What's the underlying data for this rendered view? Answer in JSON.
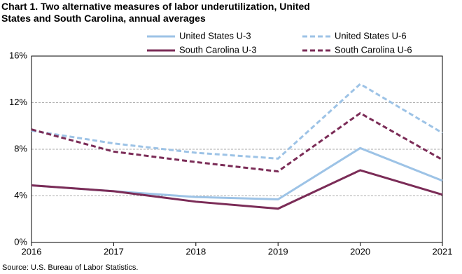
{
  "chart_data": {
    "type": "line",
    "title": "Chart 1. Two alternative measures of labor underutilization, United States and South Carolina, annual averages",
    "source": "Source: U.S. Bureau of Labor Statistics.",
    "x": [
      2016,
      2017,
      2018,
      2019,
      2020,
      2021
    ],
    "xlim": [
      2016,
      2021
    ],
    "xticks": [
      2016,
      2017,
      2018,
      2019,
      2020,
      2021
    ],
    "ylim": [
      0,
      16
    ],
    "yticks": [
      {
        "value": 0,
        "label": "0%"
      },
      {
        "value": 4,
        "label": "4%"
      },
      {
        "value": 8,
        "label": "8%"
      },
      {
        "value": 12,
        "label": "12%"
      },
      {
        "value": 16,
        "label": "16%"
      }
    ],
    "grid": true,
    "series": [
      {
        "name": "United States U-3",
        "color": "#9dc3e6",
        "dashed": false,
        "values": [
          4.9,
          4.4,
          3.9,
          3.7,
          8.1,
          5.3
        ]
      },
      {
        "name": "United States U-6",
        "color": "#9dc3e6",
        "dashed": true,
        "values": [
          9.6,
          8.5,
          7.7,
          7.2,
          13.6,
          9.4
        ]
      },
      {
        "name": "South Carolina U-3",
        "color": "#7b2c57",
        "dashed": false,
        "values": [
          4.9,
          4.4,
          3.5,
          2.9,
          6.2,
          4.1
        ]
      },
      {
        "name": "South Carolina U-6",
        "color": "#7b2c57",
        "dashed": true,
        "values": [
          9.7,
          7.8,
          6.9,
          6.1,
          11.1,
          7.1
        ]
      }
    ]
  }
}
